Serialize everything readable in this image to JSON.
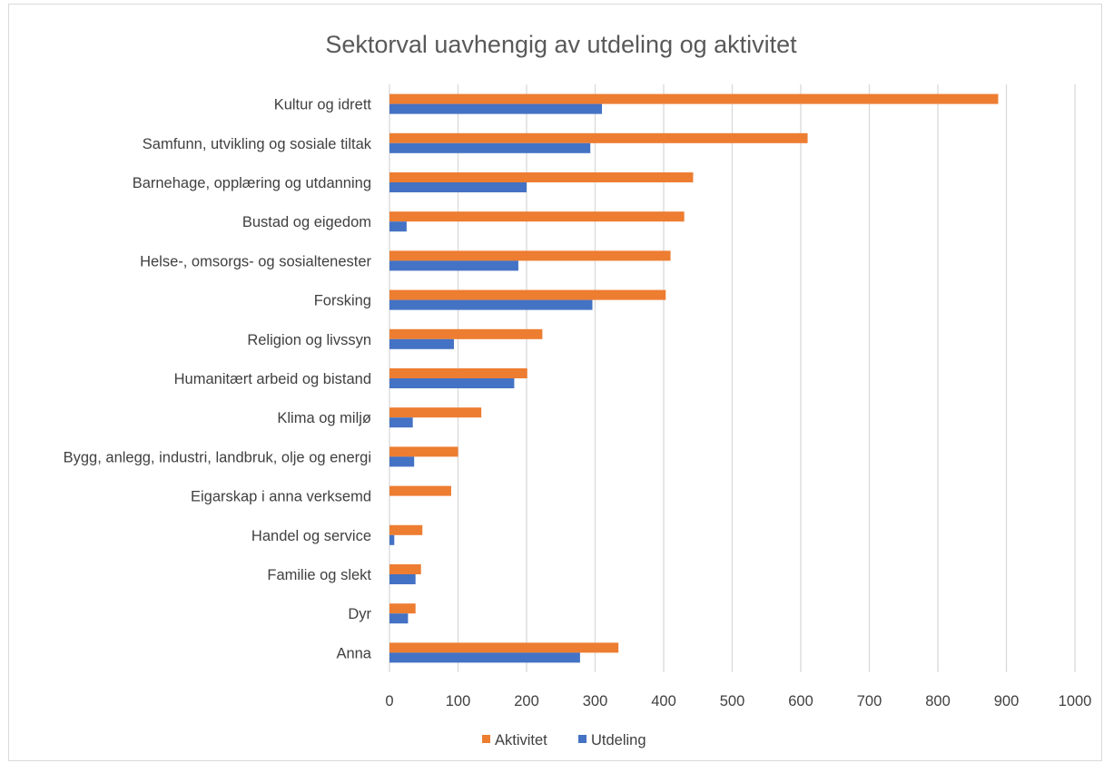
{
  "chart_data": {
    "type": "bar",
    "orientation": "horizontal",
    "title": "Sektorval uavhengig av utdeling og aktivitet",
    "categories": [
      "Kultur og idrett",
      "Samfunn, utvikling og sosiale tiltak",
      "Barnehage, opplæring og utdanning",
      "Bustad og eigedom",
      "Helse-, omsorgs- og sosialtenester",
      "Forsking",
      "Religion og livssyn",
      "Humanitært arbeid og bistand",
      "Klima og miljø",
      "Bygg, anlegg, industri, landbruk, olje og energi",
      "Eigarskap i anna verksemd",
      "Handel og service",
      "Familie og slekt",
      "Dyr",
      "Anna"
    ],
    "series": [
      {
        "name": "Aktivitet",
        "color": "#ed7d31",
        "values": [
          888,
          610,
          443,
          430,
          410,
          403,
          223,
          201,
          134,
          100,
          90,
          48,
          46,
          38,
          334
        ]
      },
      {
        "name": "Utdeling",
        "color": "#4472c4",
        "values": [
          310,
          293,
          200,
          25,
          188,
          296,
          94,
          182,
          34,
          36,
          0,
          7,
          38,
          27,
          278
        ]
      }
    ],
    "xlim": [
      0,
      1000
    ],
    "xticks": [
      "0",
      "100",
      "200",
      "300",
      "400",
      "500",
      "600",
      "700",
      "800",
      "900",
      "1000"
    ],
    "grid": true,
    "legend_position": "bottom"
  }
}
